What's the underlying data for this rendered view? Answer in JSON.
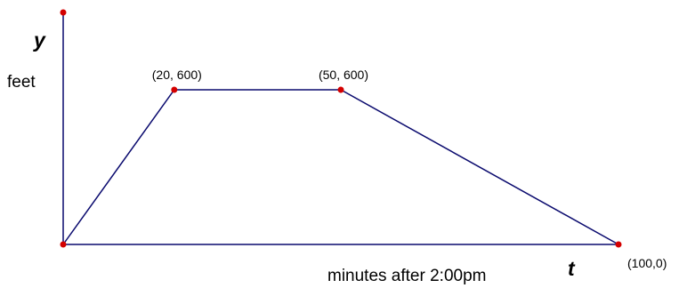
{
  "chart_data": {
    "type": "line",
    "title": "",
    "x_variable": "t",
    "y_variable": "y",
    "xlabel": "minutes after 2:00pm",
    "ylabel": "feet",
    "xlim": [
      0,
      100
    ],
    "ylim": [
      0,
      900
    ],
    "grid": false,
    "series": [
      {
        "x": [
          0,
          20,
          50,
          100
        ],
        "y": [
          0,
          600,
          600,
          0
        ]
      }
    ],
    "point_labels": [
      {
        "x": 20,
        "y": 600,
        "text": "(20, 600)"
      },
      {
        "x": 50,
        "y": 600,
        "text": "(50, 600)"
      },
      {
        "x": 100,
        "y": 0,
        "text": "(100,0)"
      }
    ],
    "colors": {
      "axis": "#0a0a6e",
      "line": "#0a0a6e",
      "point": "#d40000"
    }
  }
}
